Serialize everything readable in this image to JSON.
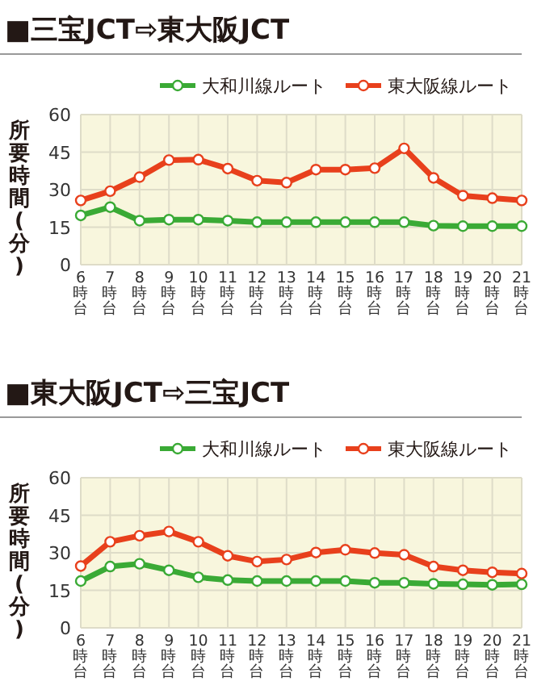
{
  "chart_data": [
    {
      "type": "line",
      "title": "■三宝JCT⇨東大阪JCT",
      "ylabel": "所要時間(分)",
      "categories": [
        "6時台",
        "7時台",
        "8時台",
        "9時台",
        "10時台",
        "11時台",
        "12時台",
        "13時台",
        "14時台",
        "15時台",
        "16時台",
        "17時台",
        "18時台",
        "19時台",
        "20時台",
        "21時台"
      ],
      "series": [
        {
          "name": "大和川線ルート",
          "color": "#3aaa35",
          "values": [
            19.7,
            23,
            17.6,
            18,
            18,
            17.6,
            17,
            17,
            17,
            17,
            17,
            17,
            15.6,
            15.4,
            15.4,
            15.4
          ]
        },
        {
          "name": "東大阪線ルート",
          "color": "#e8401c",
          "values": [
            25.7,
            29.4,
            35,
            41.8,
            42,
            38.4,
            33.6,
            32.8,
            38,
            38,
            38.6,
            46.5,
            34.7,
            27.6,
            26.6,
            25.7
          ]
        }
      ],
      "ylim": [
        0,
        60
      ],
      "yticks": [
        0,
        15,
        30,
        45,
        60
      ],
      "grid": true,
      "legend": "top right",
      "marker": "circle"
    },
    {
      "type": "line",
      "title": "■東大阪JCT⇨三宝JCT",
      "ylabel": "所要時間(分)",
      "categories": [
        "6時台",
        "7時台",
        "8時台",
        "9時台",
        "10時台",
        "11時台",
        "12時台",
        "13時台",
        "14時台",
        "15時台",
        "16時台",
        "17時台",
        "18時台",
        "19時台",
        "20時台",
        "21時台"
      ],
      "series": [
        {
          "name": "大和川線ルート",
          "color": "#3aaa35",
          "values": [
            18.7,
            24.5,
            25.6,
            23,
            20.2,
            19.1,
            18.7,
            18.7,
            18.7,
            18.7,
            18,
            18,
            17.6,
            17.4,
            17.2,
            17.4
          ]
        },
        {
          "name": "東大阪線ルート",
          "color": "#e8401c",
          "values": [
            24.7,
            34.4,
            36.8,
            38.5,
            34.4,
            28.8,
            26.5,
            27.3,
            30.1,
            31.2,
            29.9,
            29.2,
            24.5,
            23,
            22.2,
            21.7
          ]
        }
      ],
      "ylim": [
        0,
        60
      ],
      "yticks": [
        0,
        15,
        30,
        45,
        60
      ],
      "grid": true,
      "legend": "top right",
      "marker": "circle"
    }
  ]
}
